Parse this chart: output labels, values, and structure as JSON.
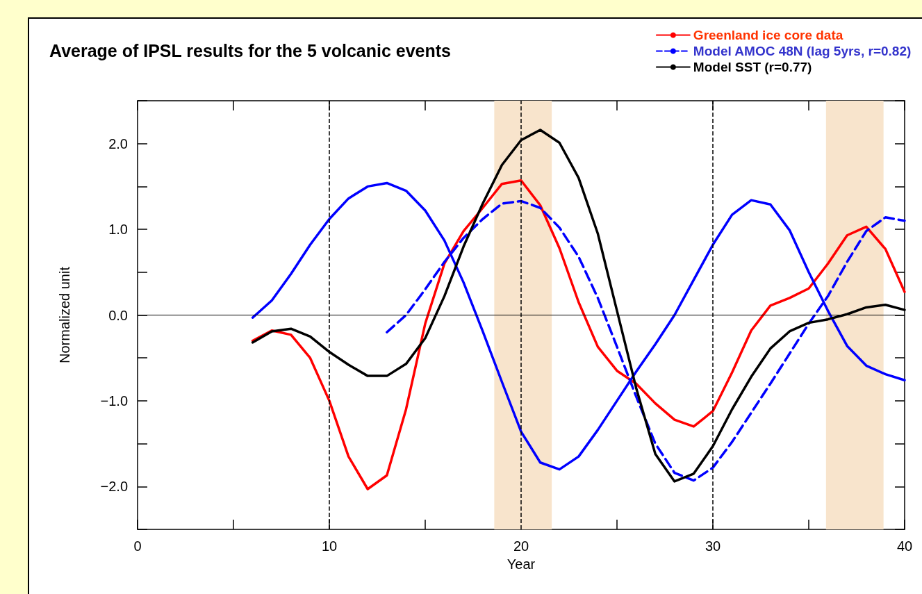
{
  "chart_data": {
    "type": "line",
    "title": "Average of IPSL results for the 5 volcanic events",
    "xlabel": "Year",
    "ylabel": "Normalized unit",
    "xlim": [
      0,
      40
    ],
    "xticks": [
      0,
      {
        "value": 5,
        "label": null
      },
      10,
      {
        "value": 15,
        "label": null
      },
      20,
      {
        "value": 25,
        "label": null
      },
      30,
      {
        "value": 35,
        "label": null
      },
      40
    ],
    "ylim": [
      -2.5,
      2.5
    ],
    "yticks": [
      {
        "value": -2.5,
        "label": null
      },
      {
        "value": -2,
        "label": "−2.0"
      },
      {
        "value": -1.5,
        "label": null
      },
      {
        "value": -1,
        "label": "−1.0"
      },
      {
        "value": -0.5,
        "label": null
      },
      {
        "value": 0,
        "label": "0.0"
      },
      {
        "value": 0.5,
        "label": null
      },
      {
        "value": 1,
        "label": "1.0"
      },
      {
        "value": 1.5,
        "label": null
      },
      {
        "value": 2,
        "label": "2.0"
      },
      {
        "value": 2.5,
        "label": null
      }
    ],
    "grid": false,
    "legend": "top right",
    "marker": "none",
    "series": [
      {
        "name": "Greenland ice core data",
        "color": "#ff0000",
        "line_style": "solid",
        "x": [
          6,
          7,
          8,
          9,
          10,
          11,
          12,
          13,
          14,
          15,
          16,
          17,
          18,
          19,
          20,
          21,
          22,
          23,
          24,
          25,
          26,
          27,
          28,
          29,
          30,
          31,
          32,
          33,
          34,
          35,
          36,
          37,
          38,
          39,
          40
        ],
        "values": [
          -0.3,
          -0.18,
          -0.23,
          -0.5,
          -1.0,
          -1.65,
          -2.03,
          -1.87,
          -1.1,
          -0.1,
          0.6,
          0.98,
          1.25,
          1.53,
          1.57,
          1.28,
          0.78,
          0.15,
          -0.37,
          -0.65,
          -0.8,
          -1.03,
          -1.22,
          -1.3,
          -1.12,
          -0.67,
          -0.18,
          0.11,
          0.2,
          0.31,
          0.6,
          0.93,
          1.03,
          0.77,
          0.27
        ]
      },
      {
        "color": "#0000ff",
        "line_style": "solid",
        "x": [
          6,
          7,
          8,
          9,
          10,
          11,
          12,
          13,
          14,
          15,
          16,
          17,
          18,
          19,
          20,
          21,
          22,
          23,
          24,
          25,
          26,
          27,
          28,
          29,
          30,
          31,
          32,
          33,
          34,
          35,
          36,
          37,
          38,
          39,
          40
        ],
        "values": [
          -0.03,
          0.17,
          0.48,
          0.82,
          1.12,
          1.36,
          1.5,
          1.54,
          1.45,
          1.22,
          0.87,
          0.38,
          -0.19,
          -0.78,
          -1.36,
          -1.72,
          -1.8,
          -1.65,
          -1.34,
          -1.0,
          -0.66,
          -0.34,
          0.0,
          0.41,
          0.82,
          1.17,
          1.34,
          1.29,
          0.99,
          0.5,
          0.05,
          -0.36,
          -0.59,
          -0.69,
          -0.76
        ]
      },
      {
        "name": "Model AMOC 48N (lag 5yrs, r=0.82)",
        "color": "#0000ff",
        "line_style": "dashed",
        "x": [
          13,
          14,
          15,
          16,
          17,
          18,
          19,
          20,
          21,
          22,
          23,
          24,
          25,
          26,
          27,
          28,
          29,
          30,
          31,
          32,
          33,
          34,
          35,
          36,
          37,
          38,
          39,
          40
        ],
        "values": [
          -0.2,
          0.0,
          0.3,
          0.62,
          0.9,
          1.12,
          1.3,
          1.33,
          1.25,
          1.02,
          0.68,
          0.2,
          -0.37,
          -0.95,
          -1.5,
          -1.84,
          -1.93,
          -1.78,
          -1.48,
          -1.14,
          -0.8,
          -0.45,
          -0.1,
          0.22,
          0.62,
          0.98,
          1.14,
          1.1
        ]
      },
      {
        "name": "Model SST (r=0.77)",
        "color": "#000000",
        "line_style": "solid",
        "x": [
          6,
          7,
          8,
          9,
          10,
          11,
          12,
          13,
          14,
          15,
          16,
          17,
          18,
          19,
          20,
          21,
          22,
          23,
          24,
          25,
          26,
          27,
          28,
          29,
          30,
          31,
          32,
          33,
          34,
          35,
          36,
          37,
          38,
          39,
          40
        ],
        "values": [
          -0.32,
          -0.19,
          -0.16,
          -0.25,
          -0.43,
          -0.58,
          -0.71,
          -0.71,
          -0.57,
          -0.27,
          0.22,
          0.8,
          1.3,
          1.75,
          2.04,
          2.16,
          2.01,
          1.6,
          0.95,
          0.05,
          -0.85,
          -1.62,
          -1.94,
          -1.85,
          -1.53,
          -1.1,
          -0.72,
          -0.39,
          -0.19,
          -0.09,
          -0.05,
          0.01,
          0.09,
          0.12,
          0.06
        ]
      }
    ],
    "ref_lines": [
      {
        "axis": "x",
        "value": 10,
        "color": "#000000",
        "line_style": "dashed"
      },
      {
        "axis": "x",
        "value": 20,
        "color": "#000000",
        "line_style": "dashed"
      },
      {
        "axis": "x",
        "value": 30,
        "color": "#000000",
        "line_style": "dashed"
      },
      {
        "axis": "y",
        "value": 0,
        "color": "#000000",
        "line_style": "solid"
      }
    ],
    "bands": [
      {
        "axis": "x",
        "from": 18.6,
        "to": 21.6,
        "color": "#f8e4cc"
      },
      {
        "axis": "x",
        "from": 35.9,
        "to": 38.9,
        "color": "#f8e4cc"
      }
    ]
  }
}
